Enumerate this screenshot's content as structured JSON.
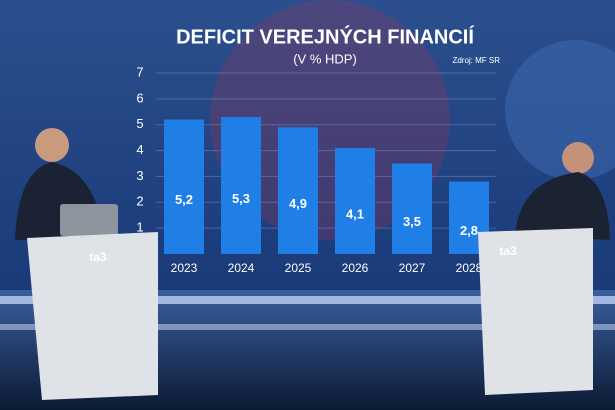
{
  "chart_data": {
    "type": "bar",
    "title": "DEFICIT VEREJNÝCH FINANCIÍ",
    "subtitle": "(V % HDP)",
    "source": "Zdroj: MF SR",
    "categories": [
      "2023",
      "2024",
      "2025",
      "2026",
      "2027",
      "2028"
    ],
    "values": [
      5.2,
      5.3,
      4.9,
      4.1,
      3.5,
      2.8
    ],
    "value_labels": [
      "5,2",
      "5,3",
      "4,9",
      "4,1",
      "3,5",
      "2,8"
    ],
    "color": "#1f7fe6",
    "ylim": [
      0,
      7
    ],
    "yticks": [
      1,
      2,
      3,
      4,
      5,
      6,
      7
    ],
    "grid": true
  },
  "studio": {
    "desk_logos": [
      "ta3",
      "ta3"
    ]
  }
}
